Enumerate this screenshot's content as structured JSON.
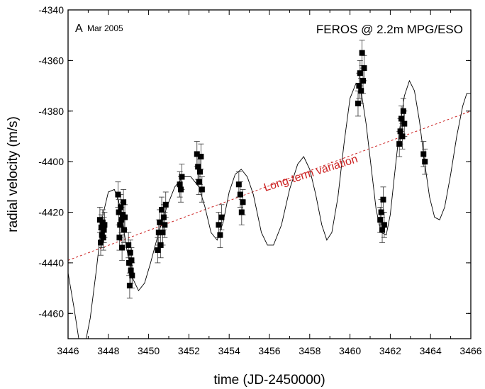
{
  "chart_data": {
    "type": "scatter",
    "xlabel": "time (JD-2450000)",
    "ylabel": "radial velocity (m/s)",
    "xlim": [
      3446,
      3466
    ],
    "ylim": [
      -4470,
      -4340
    ],
    "x_ticks": [
      3446,
      3448,
      3450,
      3452,
      3454,
      3456,
      3458,
      3460,
      3462,
      3464,
      3466
    ],
    "y_ticks": [
      -4340,
      -4360,
      -4380,
      -4400,
      -4420,
      -4440,
      -4460
    ],
    "x_tick_labels": [
      "3446",
      "3448",
      "3450",
      "3452",
      "3454",
      "3456",
      "3458",
      "3460",
      "3462",
      "3464",
      "3466"
    ],
    "y_tick_labels": [
      "-4340",
      "-4360",
      "-4380",
      "-4400",
      "-4420",
      "-4440",
      "-4460"
    ],
    "grid": false,
    "annotations": {
      "panel_letter": "A",
      "panel_date": "Mar 2005",
      "instrument": "FEROS @ 2.2m MPG/ESO",
      "trend": "Long-term variation"
    },
    "trend_line": {
      "x": [
        3446,
        3466
      ],
      "y": [
        -4439,
        -4380
      ],
      "color": "#cc2222"
    },
    "model_curve_points": [
      [
        3446.0,
        -4444
      ],
      [
        3446.3,
        -4458
      ],
      [
        3446.55,
        -4471
      ],
      [
        3446.85,
        -4472
      ],
      [
        3447.1,
        -4462
      ],
      [
        3447.4,
        -4443
      ],
      [
        3447.7,
        -4422
      ],
      [
        3448.0,
        -4412
      ],
      [
        3448.3,
        -4411
      ],
      [
        3448.6,
        -4418
      ],
      [
        3448.9,
        -4434
      ],
      [
        3449.2,
        -4446
      ],
      [
        3449.5,
        -4451
      ],
      [
        3449.8,
        -4448
      ],
      [
        3450.1,
        -4440
      ],
      [
        3450.5,
        -4428
      ],
      [
        3450.9,
        -4418
      ],
      [
        3451.3,
        -4410
      ],
      [
        3451.7,
        -4406
      ],
      [
        3452.1,
        -4406
      ],
      [
        3452.5,
        -4410
      ],
      [
        3452.8,
        -4418
      ],
      [
        3453.1,
        -4428
      ],
      [
        3453.4,
        -4431
      ],
      [
        3453.7,
        -4424
      ],
      [
        3454.0,
        -4412
      ],
      [
        3454.3,
        -4405
      ],
      [
        3454.6,
        -4403
      ],
      [
        3454.9,
        -4406
      ],
      [
        3455.2,
        -4413
      ],
      [
        3455.6,
        -4428
      ],
      [
        3455.9,
        -4433
      ],
      [
        3456.2,
        -4433
      ],
      [
        3456.6,
        -4425
      ],
      [
        3457.0,
        -4411
      ],
      [
        3457.4,
        -4401
      ],
      [
        3457.7,
        -4398
      ],
      [
        3458.0,
        -4403
      ],
      [
        3458.3,
        -4413
      ],
      [
        3458.6,
        -4425
      ],
      [
        3458.85,
        -4431
      ],
      [
        3459.1,
        -4428
      ],
      [
        3459.4,
        -4414
      ],
      [
        3459.7,
        -4393
      ],
      [
        3460.0,
        -4375
      ],
      [
        3460.3,
        -4369
      ],
      [
        3460.55,
        -4372
      ],
      [
        3460.8,
        -4385
      ],
      [
        3461.05,
        -4402
      ],
      [
        3461.3,
        -4419
      ],
      [
        3461.55,
        -4428
      ],
      [
        3461.8,
        -4429
      ],
      [
        3462.0,
        -4421
      ],
      [
        3462.2,
        -4406
      ],
      [
        3462.45,
        -4388
      ],
      [
        3462.7,
        -4374
      ],
      [
        3462.95,
        -4368
      ],
      [
        3463.2,
        -4372
      ],
      [
        3463.45,
        -4384
      ],
      [
        3463.7,
        -4400
      ],
      [
        3463.95,
        -4414
      ],
      [
        3464.2,
        -4422
      ],
      [
        3464.45,
        -4423
      ],
      [
        3464.7,
        -4418
      ],
      [
        3465.0,
        -4405
      ],
      [
        3465.3,
        -4390
      ],
      [
        3465.6,
        -4378
      ],
      [
        3465.8,
        -4373
      ],
      [
        3466.0,
        -4373
      ]
    ],
    "series": [
      {
        "marker": "square",
        "x": [
          3447.58,
          3447.62,
          3447.65,
          3447.68,
          3447.72,
          3447.75,
          3447.78,
          3447.81,
          3448.48,
          3448.52,
          3448.55,
          3448.58,
          3448.62,
          3448.65,
          3448.68,
          3448.72,
          3448.75,
          3448.78,
          3448.82,
          3449.0,
          3449.03,
          3449.06,
          3449.09,
          3449.12,
          3449.15,
          3449.18,
          3450.45,
          3450.5,
          3450.55,
          3450.6,
          3450.65,
          3450.7,
          3450.75,
          3450.8,
          3450.85,
          3451.55,
          3451.6,
          3451.65,
          3452.4,
          3452.45,
          3452.5,
          3452.55,
          3452.6,
          3452.65,
          3453.48,
          3453.55,
          3453.62,
          3454.48,
          3454.55,
          3454.62,
          3454.68,
          3460.4,
          3460.45,
          3460.5,
          3460.55,
          3460.6,
          3460.65,
          3460.7,
          3461.5,
          3461.55,
          3461.6,
          3461.65,
          3461.7,
          3462.45,
          3462.5,
          3462.55,
          3462.6,
          3462.65,
          3462.7,
          3463.65,
          3463.72
        ],
        "y": [
          -4423,
          -4432,
          -4426,
          -4429,
          -4424,
          -4430,
          -4427,
          -4425,
          -4413,
          -4420,
          -4430,
          -4425,
          -4418,
          -4423,
          -4434,
          -4421,
          -4416,
          -4427,
          -4422,
          -4433,
          -4440,
          -4449,
          -4436,
          -4443,
          -4439,
          -4445,
          -4435,
          -4428,
          -4424,
          -4433,
          -4419,
          -4428,
          -4422,
          -4425,
          -4417,
          -4409,
          -4411,
          -4406,
          -4397,
          -4402,
          -4408,
          -4404,
          -4398,
          -4411,
          -4425,
          -4429,
          -4422,
          -4409,
          -4413,
          -4420,
          -4416,
          -4377,
          -4370,
          -4365,
          -4372,
          -4357,
          -4368,
          -4363,
          -4423,
          -4420,
          -4427,
          -4415,
          -4425,
          -4393,
          -4388,
          -4383,
          -4390,
          -4380,
          -4385,
          -4397,
          -4400
        ]
      }
    ]
  }
}
